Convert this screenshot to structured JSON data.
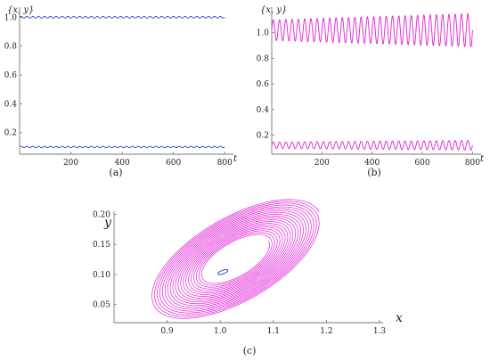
{
  "chart_data": [
    {
      "panel_label": "(a)",
      "type": "line",
      "ylabel": "{x, y}",
      "xlabel": "t",
      "xlim": [
        0,
        820
      ],
      "ylim": [
        0.05,
        1.07
      ],
      "x_ticks": [
        200,
        400,
        600,
        800
      ],
      "x_tick_labels": [
        "200",
        "400",
        "600",
        "800"
      ],
      "y_ticks": [
        0.2,
        0.4,
        0.6,
        0.8,
        1.0
      ],
      "y_tick_labels": [
        "0.2",
        "0.4",
        "0.6",
        "0.8",
        "1.0"
      ],
      "series": [
        {
          "color": "#3344cc",
          "t_range": [
            0,
            800
          ],
          "mean": 1.0,
          "amplitude": 0.006,
          "cycles": 35
        },
        {
          "color": "#3344cc",
          "t_range": [
            0,
            800
          ],
          "mean": 0.1,
          "amplitude": 0.005,
          "cycles": 35
        }
      ]
    },
    {
      "panel_label": "(b)",
      "type": "line",
      "ylabel": "{x, y}",
      "xlabel": "t",
      "xlim": [
        0,
        820
      ],
      "ylim": [
        0.05,
        1.2
      ],
      "x_ticks": [
        200,
        400,
        600,
        800
      ],
      "x_tick_labels": [
        "200",
        "400",
        "600",
        "800"
      ],
      "y_ticks": [
        0.2,
        0.4,
        0.6,
        0.8,
        1.0
      ],
      "y_tick_labels": [
        "0.2",
        "0.4",
        "0.6",
        "0.8",
        "1.0"
      ],
      "series": [
        {
          "color": "#e21fd6",
          "t_range": [
            0,
            800
          ],
          "mean": 1.02,
          "amplitude_start": 0.08,
          "amplitude_end": 0.13,
          "cycles": 32
        },
        {
          "color": "#e21fd6",
          "t_range": [
            0,
            800
          ],
          "mean": 0.12,
          "amplitude_start": 0.025,
          "amplitude_end": 0.038,
          "cycles": 32
        }
      ]
    },
    {
      "panel_label": "(c)",
      "type": "line",
      "xlabel": "x",
      "ylabel": "y",
      "xlim": [
        0.8,
        1.3
      ],
      "ylim": [
        0.02,
        0.205
      ],
      "x_ticks": [
        0.9,
        1.0,
        1.1,
        1.2,
        1.3
      ],
      "x_tick_labels": [
        "0.9",
        "1.0",
        "1.1",
        "1.2",
        "1.3"
      ],
      "y_ticks": [
        0.05,
        0.1,
        0.15,
        0.2
      ],
      "y_tick_labels": [
        "0.05",
        "0.10",
        "0.15",
        "0.20"
      ],
      "series": [
        {
          "color": "#e21fd6",
          "kind": "spiral",
          "center": [
            1.03,
            0.125
          ],
          "inner_radius": [
            0.07,
            0.027
          ],
          "outer_radius": [
            0.18,
            0.07
          ],
          "turns": 20,
          "tilt_deg": -30
        },
        {
          "color": "#3344cc",
          "kind": "ellipse",
          "center": [
            1.005,
            0.104
          ],
          "radius": [
            0.01,
            0.003
          ],
          "tilt_deg": -20
        }
      ]
    }
  ]
}
